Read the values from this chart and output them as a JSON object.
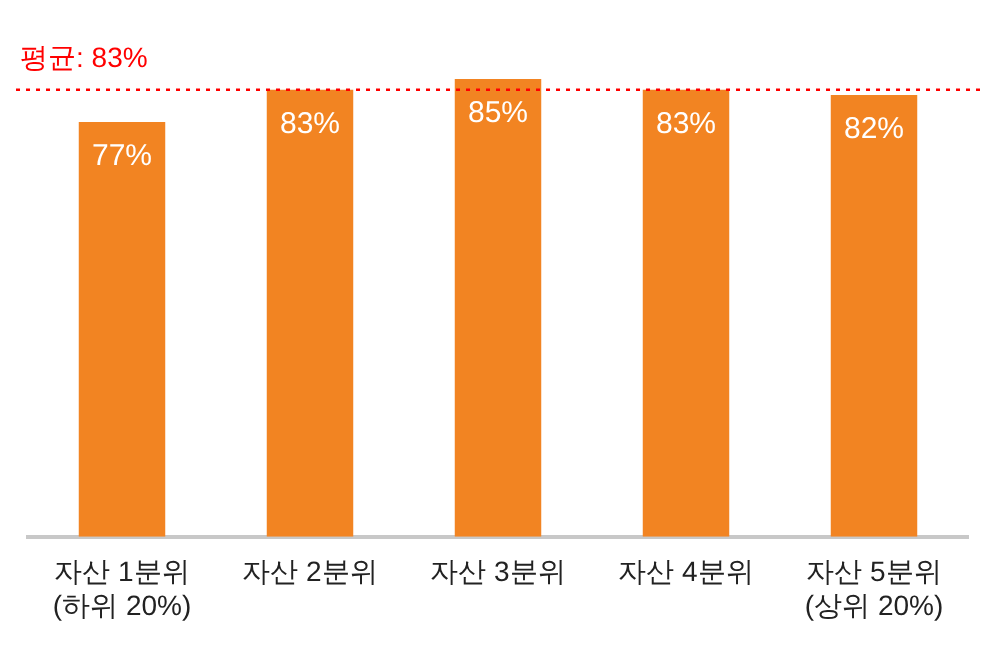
{
  "chart_data": {
    "type": "bar",
    "categories": [
      "자산 1분위\n(하위 20%)",
      "자산 2분위",
      "자산 3분위",
      "자산 4분위",
      "자산 5분위\n(상위 20%)"
    ],
    "values": [
      77,
      83,
      85,
      83,
      82
    ],
    "value_labels": [
      "77%",
      "83%",
      "85%",
      "83%",
      "82%"
    ],
    "color": "#f28422",
    "ref_lines": [
      {
        "axis": "y",
        "value": 83,
        "label": "평균: 83%",
        "color": "#ff0000",
        "line_style": "dotted"
      }
    ],
    "grid": false,
    "legend": false
  }
}
